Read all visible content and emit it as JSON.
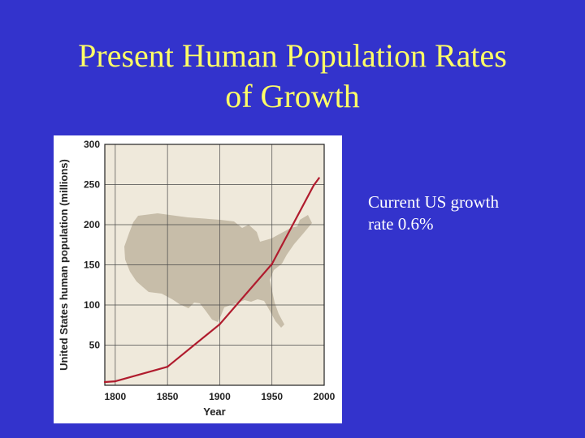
{
  "slide": {
    "title_line1": "Present Human Population Rates",
    "title_line2": "of Growth",
    "note_line1": "Current US growth",
    "note_line2": "rate 0.6%"
  },
  "colors": {
    "background": "#3333cc",
    "title": "#ffff66",
    "note": "#ffffff",
    "plot_background": "#efe9db",
    "map_fill": "#c7bda9",
    "line": "#b01c2e",
    "grid": "#4a4a4a"
  },
  "chart_data": {
    "type": "line",
    "title": "",
    "xlabel": "Year",
    "ylabel": "United States human population (millions)",
    "xlim": [
      1790,
      2000
    ],
    "ylim": [
      0,
      300
    ],
    "xticks": [
      1800,
      1850,
      1900,
      1950,
      2000
    ],
    "yticks": [
      50,
      100,
      150,
      200,
      250,
      300
    ],
    "grid": true,
    "background_image": "us-map-silhouette",
    "series": [
      {
        "x": [
          1790,
          1800,
          1850,
          1900,
          1950,
          1990,
          1995
        ],
        "y": [
          4,
          5,
          23,
          76,
          151,
          249,
          258
        ]
      }
    ]
  }
}
